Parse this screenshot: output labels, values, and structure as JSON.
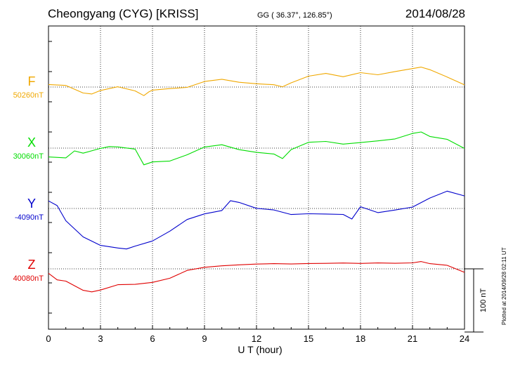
{
  "header": {
    "title": "Cheongyang (CYG)  [KRISS]",
    "coords": "GG ( 36.37°, 126.85°)",
    "date": "2014/08/28"
  },
  "plotted": "Plotted at 2014/09/28 02:11 UT",
  "scale_label": "100 nT",
  "colors": {
    "F": "#f0a800",
    "X": "#00dd00",
    "Y": "#0000cc",
    "Z": "#e00000"
  },
  "chart_data": {
    "type": "line",
    "xlabel": "U T (hour)",
    "xlim": [
      0,
      24
    ],
    "xticks": [
      "0",
      "3",
      "6",
      "9",
      "12",
      "15",
      "18",
      "21",
      "24"
    ],
    "scale_nT": 100,
    "series": [
      {
        "name": "F",
        "baseline_label": "50260nT",
        "baseline_nT": 50260,
        "x": [
          0,
          1,
          2,
          2.5,
          3,
          4,
          5,
          5.5,
          5.8,
          6,
          7,
          8,
          9,
          10,
          11,
          12,
          13,
          13.5,
          14,
          15,
          16,
          17,
          18,
          19,
          20,
          21,
          21.5,
          22,
          23,
          24
        ],
        "y": [
          4,
          2,
          -10,
          -11,
          -5,
          1,
          -6,
          -14,
          -8,
          -5,
          -2,
          0,
          9,
          12,
          7,
          5,
          4,
          1,
          7,
          17,
          21,
          16,
          23,
          20,
          25,
          29,
          31,
          27,
          16,
          4
        ]
      },
      {
        "name": "X",
        "baseline_label": "30060nT",
        "baseline_nT": 30060,
        "x": [
          0,
          1,
          1.5,
          2,
          3,
          3.5,
          4,
          5,
          5.5,
          6,
          7,
          8,
          9,
          10,
          11,
          12,
          13,
          13.5,
          14,
          15,
          16,
          17,
          18,
          19,
          20,
          21,
          21.5,
          22,
          23,
          24
        ],
        "y": [
          -14,
          -16,
          -5,
          -8,
          0,
          3,
          2,
          -2,
          -27,
          -22,
          -20,
          -10,
          2,
          5,
          -3,
          -7,
          -9,
          -16,
          -2,
          9,
          10,
          6,
          9,
          12,
          15,
          23,
          25,
          18,
          14,
          0
        ]
      },
      {
        "name": "Y",
        "baseline_label": "-4090nT",
        "baseline_nT": -4090,
        "x": [
          0,
          0.5,
          1,
          2,
          3,
          4,
          4.5,
          5,
          6,
          7,
          8,
          9,
          10,
          10.5,
          11,
          12,
          13,
          14,
          15,
          16,
          17,
          17.5,
          18,
          19,
          20,
          21,
          22,
          23,
          24
        ],
        "y": [
          12,
          4,
          -20,
          -45,
          -58,
          -62,
          -64,
          -60,
          -52,
          -36,
          -17,
          -8,
          -3,
          12,
          9,
          0,
          -2,
          -9,
          -8,
          -9,
          -10,
          -17,
          3,
          -6,
          -2,
          2,
          16,
          27,
          20
        ]
      },
      {
        "name": "Z",
        "baseline_label": "40080nT",
        "baseline_nT": 40080,
        "x": [
          0,
          0.5,
          1,
          2,
          2.5,
          3,
          4,
          5,
          6,
          7,
          8,
          9,
          10,
          11,
          12,
          13,
          14,
          15,
          16,
          17,
          18,
          19,
          20,
          21,
          21.5,
          22,
          23,
          24
        ],
        "y": [
          -7,
          -18,
          -20,
          -34,
          -36,
          -33,
          -25,
          -25,
          -22,
          -15,
          -2,
          3,
          5,
          6,
          7,
          8,
          8,
          9,
          9,
          9,
          8,
          9,
          9,
          10,
          12,
          8,
          5,
          -6
        ]
      }
    ]
  }
}
